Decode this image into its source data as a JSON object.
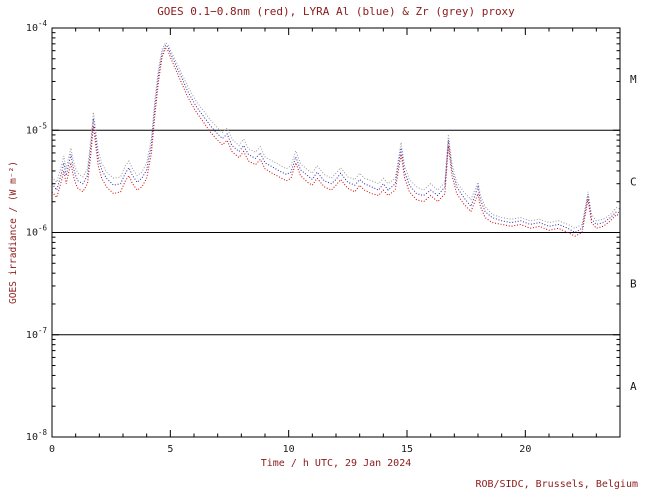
{
  "colors": {
    "accent_text": "#8b1a1a",
    "axis": "#000000",
    "tick_text": "#1a1a1a",
    "goes_red": "#cc0000",
    "lyra_al_blue": "#2a2ab0",
    "zr_grey": "#999999"
  },
  "credit": "ROB/SIDC, Brussels, Belgium",
  "chart_data": {
    "type": "line",
    "title": "GOES 0.1−0.8nm (red), LYRA Al (blue) & Zr (grey) proxy",
    "xlabel": "Time / h UTC, 29 Jan 2024",
    "ylabel": "GOES irradiance / (W m⁻²)",
    "x_range": [
      0,
      24
    ],
    "y_log_range": [
      -8,
      -4
    ],
    "x_ticks": [
      0,
      5,
      10,
      15,
      20
    ],
    "y_tick_exponents": [
      -4,
      -5,
      -6,
      -7,
      -8
    ],
    "class_line_exponents": [
      -5,
      -6,
      -7
    ],
    "class_bands": [
      {
        "label": "M",
        "exp_range": [
          -5,
          -4
        ]
      },
      {
        "label": "C",
        "exp_range": [
          -6,
          -5
        ]
      },
      {
        "label": "B",
        "exp_range": [
          -7,
          -6
        ]
      },
      {
        "label": "A",
        "exp_range": [
          -8,
          -7
        ]
      }
    ],
    "grid": false,
    "legend": "none (series identified in title)",
    "x": [
      0,
      0.2,
      0.4,
      0.5,
      0.6,
      0.8,
      0.9,
      1.0,
      1.1,
      1.3,
      1.5,
      1.65,
      1.75,
      1.85,
      1.95,
      2.1,
      2.3,
      2.6,
      2.9,
      3.1,
      3.25,
      3.4,
      3.6,
      3.8,
      4.0,
      4.2,
      4.35,
      4.5,
      4.65,
      4.8,
      4.9,
      5.0,
      5.15,
      5.3,
      5.5,
      5.7,
      5.9,
      6.1,
      6.4,
      6.7,
      7.0,
      7.2,
      7.4,
      7.6,
      7.9,
      8.1,
      8.3,
      8.6,
      8.8,
      9.0,
      9.3,
      9.6,
      9.9,
      10.1,
      10.3,
      10.5,
      10.8,
      11.0,
      11.2,
      11.5,
      11.8,
      12.0,
      12.2,
      12.5,
      12.8,
      13.0,
      13.2,
      13.5,
      13.8,
      14.0,
      14.2,
      14.5,
      14.75,
      14.9,
      15.1,
      15.4,
      15.7,
      16.0,
      16.3,
      16.6,
      16.75,
      16.9,
      17.1,
      17.4,
      17.7,
      18.0,
      18.1,
      18.3,
      18.6,
      19.0,
      19.4,
      19.8,
      20.2,
      20.6,
      21.0,
      21.4,
      21.8,
      22.1,
      22.4,
      22.65,
      22.8,
      23.0,
      23.3,
      23.6,
      23.85,
      24.0
    ],
    "series": [
      {
        "name": "Zr proxy",
        "color": "#999999",
        "style": "dotted",
        "values": [
          3.5e-06,
          3.1e-06,
          4.5e-06,
          5.6e-06,
          4.2e-06,
          6.7e-06,
          5e-06,
          4.2e-06,
          3.8e-06,
          3.5e-06,
          4.2e-06,
          8.4e-06,
          1.5e-05,
          9.8e-06,
          6.3e-06,
          4.8e-06,
          3.9e-06,
          3.4e-06,
          3.5e-06,
          4.5e-06,
          5e-06,
          4.2e-06,
          3.6e-06,
          3.9e-06,
          4.8e-06,
          8.4e-06,
          2e-05,
          4e-05,
          6.2e-05,
          7.2e-05,
          6.9e-05,
          6.1e-05,
          5.2e-05,
          4.4e-05,
          3.5e-05,
          2.8e-05,
          2.3e-05,
          1.9e-05,
          1.55e-05,
          1.25e-05,
          1.05e-05,
          9.5e-06,
          1.05e-05,
          8.2e-06,
          7.1e-06,
          8.2e-06,
          6.6e-06,
          6.1e-06,
          6.9e-06,
          5.5e-06,
          5e-06,
          4.6e-06,
          4.2e-06,
          4.5e-06,
          6.3e-06,
          4.7e-06,
          4.1e-06,
          3.8e-06,
          4.5e-06,
          3.7e-06,
          3.4e-06,
          3.8e-06,
          4.3e-06,
          3.5e-06,
          3.3e-06,
          3.8e-06,
          3.4e-06,
          3.2e-06,
          3e-06,
          3.4e-06,
          3e-06,
          3.4e-06,
          7.6e-06,
          4.5e-06,
          3.3e-06,
          2.8e-06,
          2.6e-06,
          3e-06,
          2.6e-06,
          3.1e-06,
          9.1e-06,
          4.7e-06,
          3.1e-06,
          2.5e-06,
          2.1e-06,
          3.1e-06,
          2.3e-06,
          1.8e-06,
          1.5e-06,
          1.4e-06,
          1.35e-06,
          1.4e-06,
          1.3e-06,
          1.35e-06,
          1.25e-06,
          1.3e-06,
          1.2e-06,
          1.1e-06,
          1.2e-06,
          2.5e-06,
          1.5e-06,
          1.3e-06,
          1.35e-06,
          1.5e-06,
          1.75e-06,
          1.7e-06
        ]
      },
      {
        "name": "LYRA Al",
        "color": "#2a2ab0",
        "style": "dotted",
        "values": [
          3e-06,
          2.6e-06,
          3.8e-06,
          4.8e-06,
          3.6e-06,
          5.8e-06,
          4.3e-06,
          3.6e-06,
          3.2e-06,
          3e-06,
          3.6e-06,
          7.2e-06,
          1.3e-05,
          8.4e-06,
          5.4e-06,
          4.1e-06,
          3.4e-06,
          2.9e-06,
          3e-06,
          3.8e-06,
          4.3e-06,
          3.6e-06,
          3.1e-06,
          3.4e-06,
          4.1e-06,
          7.2e-06,
          1.7e-05,
          3.5e-05,
          5.7e-05,
          6.8e-05,
          6.5e-05,
          5.7e-05,
          4.8e-05,
          4e-05,
          3.2e-05,
          2.5e-05,
          2.05e-05,
          1.7e-05,
          1.37e-05,
          1.1e-05,
          9.2e-06,
          8.3e-06,
          9.2e-06,
          7.1e-06,
          6.2e-06,
          7.1e-06,
          5.8e-06,
          5.3e-06,
          6e-06,
          4.8e-06,
          4.4e-06,
          4e-06,
          3.7e-06,
          3.9e-06,
          5.5e-06,
          4.1e-06,
          3.6e-06,
          3.3e-06,
          3.9e-06,
          3.2e-06,
          3e-06,
          3.3e-06,
          3.8e-06,
          3.1e-06,
          2.9e-06,
          3.3e-06,
          3e-06,
          2.8e-06,
          2.6e-06,
          3e-06,
          2.6e-06,
          3e-06,
          6.7e-06,
          3.9e-06,
          2.9e-06,
          2.4e-06,
          2.3e-06,
          2.6e-06,
          2.3e-06,
          2.8e-06,
          8e-06,
          4.1e-06,
          2.8e-06,
          2.2e-06,
          1.8e-06,
          2.8e-06,
          2.1e-06,
          1.6e-06,
          1.4e-06,
          1.3e-06,
          1.25e-06,
          1.3e-06,
          1.2e-06,
          1.25e-06,
          1.15e-06,
          1.2e-06,
          1.1e-06,
          1e-06,
          1.1e-06,
          2.3e-06,
          1.35e-06,
          1.2e-06,
          1.25e-06,
          1.4e-06,
          1.6e-06,
          1.55e-06
        ]
      },
      {
        "name": "GOES 0.1-0.8nm",
        "color": "#cc0000",
        "style": "dotted",
        "values": [
          2.5e-06,
          2.2e-06,
          3.2e-06,
          4e-06,
          3e-06,
          4.8e-06,
          3.6e-06,
          3e-06,
          2.7e-06,
          2.5e-06,
          3e-06,
          6e-06,
          1.1e-05,
          7e-06,
          4.5e-06,
          3.4e-06,
          2.8e-06,
          2.4e-06,
          2.5e-06,
          3.2e-06,
          3.6e-06,
          3e-06,
          2.6e-06,
          2.8e-06,
          3.4e-06,
          6e-06,
          1.4e-05,
          3e-05,
          5.2e-05,
          6.3e-05,
          6e-05,
          5.2e-05,
          4.3e-05,
          3.6e-05,
          2.8e-05,
          2.2e-05,
          1.8e-05,
          1.5e-05,
          1.2e-05,
          9.5e-06,
          8e-06,
          7.2e-06,
          8e-06,
          6.2e-06,
          5.4e-06,
          6.2e-06,
          5e-06,
          4.6e-06,
          5.2e-06,
          4.2e-06,
          3.8e-06,
          3.5e-06,
          3.2e-06,
          3.4e-06,
          4.8e-06,
          3.6e-06,
          3.1e-06,
          2.9e-06,
          3.4e-06,
          2.8e-06,
          2.6e-06,
          2.9e-06,
          3.3e-06,
          2.7e-06,
          2.5e-06,
          2.9e-06,
          2.6e-06,
          2.4e-06,
          2.3e-06,
          2.6e-06,
          2.3e-06,
          2.6e-06,
          5.8e-06,
          3.4e-06,
          2.5e-06,
          2.1e-06,
          2e-06,
          2.3e-06,
          2e-06,
          2.4e-06,
          7e-06,
          3.6e-06,
          2.4e-06,
          1.9e-06,
          1.6e-06,
          2.4e-06,
          1.8e-06,
          1.4e-06,
          1.25e-06,
          1.2e-06,
          1.15e-06,
          1.2e-06,
          1.1e-06,
          1.15e-06,
          1.05e-06,
          1.1e-06,
          1e-06,
          9.2e-07,
          1e-06,
          2.1e-06,
          1.25e-06,
          1.1e-06,
          1.15e-06,
          1.3e-06,
          1.5e-06,
          1.45e-06
        ]
      }
    ]
  }
}
